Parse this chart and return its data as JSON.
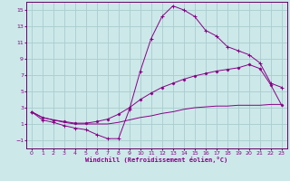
{
  "xlabel": "Windchill (Refroidissement éolien,°C)",
  "background_color": "#cce8e8",
  "grid_color": "#aacccc",
  "line_color": "#880088",
  "spine_color": "#660066",
  "xlim": [
    -0.5,
    23.5
  ],
  "ylim": [
    -2.0,
    16.0
  ],
  "xticks": [
    0,
    1,
    2,
    3,
    4,
    5,
    6,
    7,
    8,
    9,
    10,
    11,
    12,
    13,
    14,
    15,
    16,
    17,
    18,
    19,
    20,
    21,
    22,
    23
  ],
  "yticks": [
    -1,
    1,
    3,
    5,
    7,
    9,
    11,
    13,
    15
  ],
  "line1_x": [
    0,
    1,
    2,
    3,
    4,
    5,
    6,
    7,
    8,
    9,
    10,
    11,
    12,
    13,
    14,
    15,
    16,
    17,
    18,
    19,
    20,
    21,
    22,
    23
  ],
  "line1_y": [
    2.5,
    1.5,
    1.2,
    0.8,
    0.5,
    0.3,
    -0.3,
    -0.8,
    -0.8,
    2.8,
    7.5,
    11.5,
    14.2,
    15.5,
    15.0,
    14.2,
    12.5,
    11.8,
    10.5,
    10.0,
    9.5,
    8.5,
    6.0,
    5.5
  ],
  "line2_x": [
    0,
    1,
    2,
    3,
    4,
    5,
    6,
    7,
    8,
    9,
    10,
    11,
    12,
    13,
    14,
    15,
    16,
    17,
    18,
    19,
    20,
    21,
    22,
    23
  ],
  "line2_y": [
    2.5,
    1.8,
    1.5,
    1.3,
    1.1,
    1.1,
    1.3,
    1.6,
    2.2,
    3.0,
    4.0,
    4.8,
    5.5,
    6.0,
    6.5,
    6.9,
    7.2,
    7.5,
    7.7,
    7.9,
    8.3,
    7.8,
    5.8,
    3.3
  ],
  "line3_x": [
    0,
    1,
    2,
    3,
    4,
    5,
    6,
    7,
    8,
    9,
    10,
    11,
    12,
    13,
    14,
    15,
    16,
    17,
    18,
    19,
    20,
    21,
    22,
    23
  ],
  "line3_y": [
    2.5,
    1.8,
    1.5,
    1.2,
    1.0,
    1.0,
    1.0,
    1.0,
    1.2,
    1.5,
    1.8,
    2.0,
    2.3,
    2.5,
    2.8,
    3.0,
    3.1,
    3.2,
    3.2,
    3.3,
    3.3,
    3.3,
    3.4,
    3.4
  ]
}
